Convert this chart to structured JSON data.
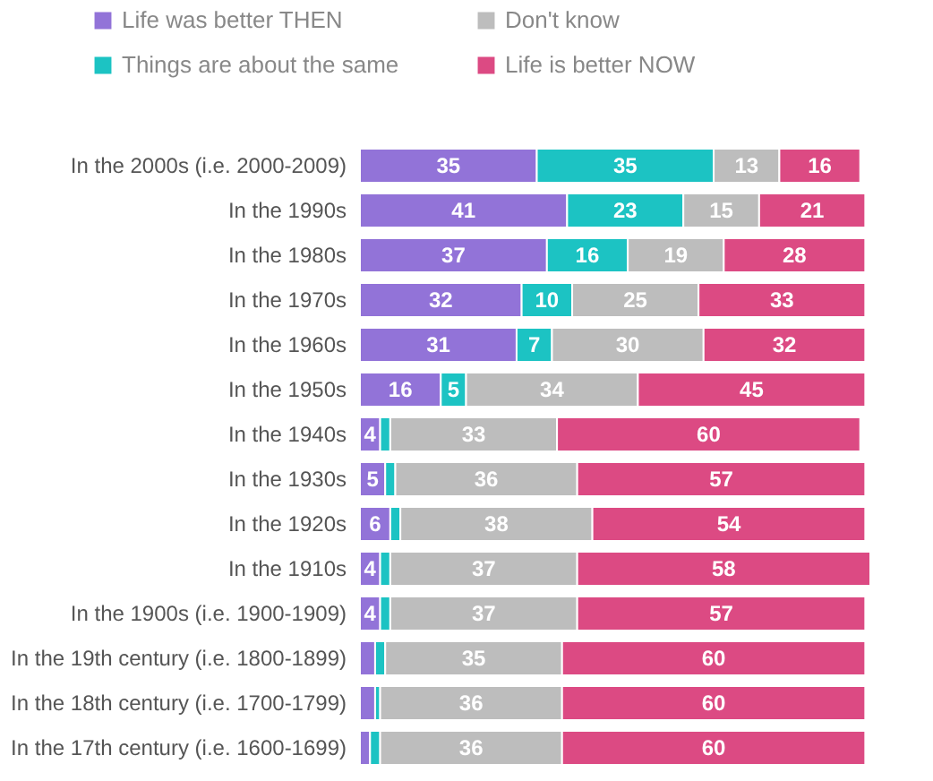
{
  "chart_data": {
    "type": "bar",
    "orientation": "horizontal",
    "stacked": true,
    "legend": "top",
    "tick_labels": "y",
    "grid": false,
    "categories": [
      "In the 2000s (i.e. 2000-2009)",
      "In the 1990s",
      "In the 1980s",
      "In the 1970s",
      "In the 1960s",
      "In the 1950s",
      "In the 1940s",
      "In the 1930s",
      "In the 1920s",
      "In the 1910s",
      "In the 1900s (i.e. 1900-1909)",
      "In the 19th century (i.e. 1800-1899)",
      "In the 18th century (i.e. 1700-1799)",
      "In the 17th century (i.e. 1600-1699)"
    ],
    "series": [
      {
        "name": "Life was better THEN",
        "color": "#9273d8",
        "values": [
          35,
          41,
          37,
          32,
          31,
          16,
          4,
          5,
          6,
          4,
          4,
          3,
          3,
          2
        ],
        "value_labels": [
          "35",
          "41",
          "37",
          "32",
          "31",
          "16",
          "4",
          "5",
          "6",
          "4",
          "4",
          null,
          null,
          null
        ]
      },
      {
        "name": "Things are about the same",
        "color": "#1cc3c3",
        "values": [
          35,
          23,
          16,
          10,
          7,
          5,
          2,
          2,
          2,
          2,
          2,
          2,
          1,
          2
        ],
        "value_labels": [
          "35",
          "23",
          "16",
          "10",
          "7",
          "5",
          null,
          null,
          null,
          null,
          null,
          null,
          null,
          null
        ]
      },
      {
        "name": "Don't know",
        "color": "#bdbdbd",
        "values": [
          13,
          15,
          19,
          25,
          30,
          34,
          33,
          36,
          38,
          37,
          37,
          35,
          36,
          36
        ],
        "value_labels": [
          "13",
          "15",
          "19",
          "25",
          "30",
          "34",
          "33",
          "36",
          "38",
          "37",
          "37",
          "35",
          "36",
          "36"
        ]
      },
      {
        "name": "Life is better NOW",
        "color": "#dc4a83",
        "values": [
          16,
          21,
          28,
          33,
          32,
          45,
          60,
          57,
          54,
          58,
          57,
          60,
          60,
          60
        ],
        "value_labels": [
          "16",
          "21",
          "28",
          "33",
          "32",
          "45",
          "60",
          "57",
          "54",
          "58",
          "57",
          "60",
          "60",
          "60"
        ]
      }
    ]
  }
}
